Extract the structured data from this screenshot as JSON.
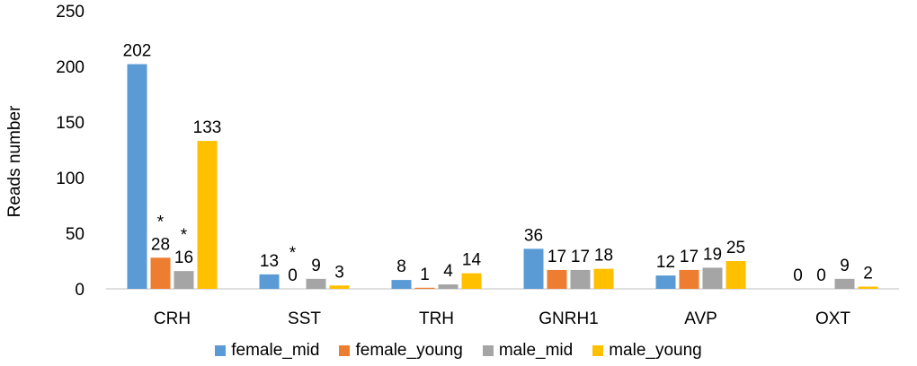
{
  "chart_data": {
    "type": "bar",
    "title": "",
    "xlabel": "",
    "ylabel": "Reads number",
    "ylim": [
      0,
      250
    ],
    "yticks": [
      0,
      50,
      100,
      150,
      200,
      250
    ],
    "grid": false,
    "legend_position": "bottom",
    "categories": [
      "CRH",
      "SST",
      "TRH",
      "GNRH1",
      "AVP",
      "OXT"
    ],
    "series": [
      {
        "name": "female_mid",
        "color": "#5B9BD5",
        "values": [
          202,
          13,
          8,
          36,
          12,
          0
        ],
        "labels": [
          "202",
          "13",
          "8",
          "36",
          "12",
          "0"
        ]
      },
      {
        "name": "female_young",
        "color": "#ED7D31",
        "values": [
          28,
          0,
          1,
          17,
          17,
          0
        ],
        "labels": [
          "28",
          "0",
          "1",
          "17",
          "17",
          "0"
        ]
      },
      {
        "name": "male_mid",
        "color": "#A5A5A5",
        "values": [
          16,
          9,
          4,
          17,
          19,
          9
        ],
        "labels": [
          "16",
          "9",
          "4",
          "17",
          "19",
          "9"
        ]
      },
      {
        "name": "male_young",
        "color": "#FFC000",
        "values": [
          133,
          3,
          14,
          18,
          25,
          2
        ],
        "labels": [
          "133",
          "3",
          "14",
          "18",
          "25",
          "2"
        ]
      }
    ],
    "annotations": [
      {
        "text": "*",
        "category": "CRH",
        "series": "female_young"
      },
      {
        "text": "*",
        "category": "CRH",
        "series": "male_mid"
      },
      {
        "text": "*",
        "category": "SST",
        "series": "female_young"
      }
    ]
  }
}
